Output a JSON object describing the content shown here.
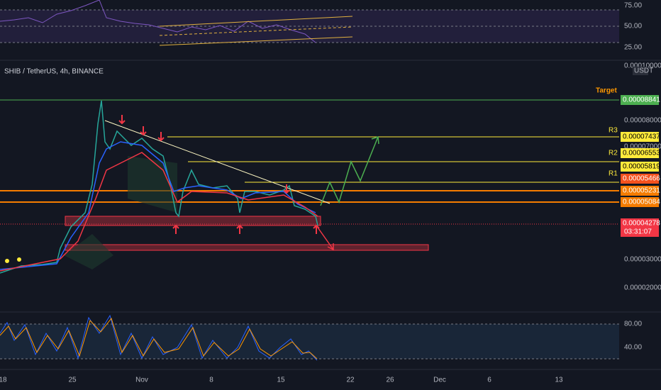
{
  "header": {
    "symbol": "SHIB / TetherUS, 4h, BINANCE",
    "currency": "USDT"
  },
  "rsi_axis": [
    "75.00",
    "50.00",
    "25.00"
  ],
  "price_axis": {
    "top": "0.00010000",
    "target_label": "Target",
    "target": "0.00008841",
    "p8": "0.00008000",
    "r3_label": "R3",
    "r3": "0.00007437",
    "p7": "0.00007000",
    "r2_label": "R2",
    "r2": "0.00006553",
    "r2b": "0.00005819",
    "r1_label": "R1",
    "r1": "0.00005466",
    "s1": "0.00005231",
    "s2": "0.00005084",
    "last": "0.00004278",
    "countdown": "03:31:07",
    "p3": "0.00003000",
    "p2": "0.00002000"
  },
  "stoch_axis": [
    "80.00",
    "40.00"
  ],
  "time_axis": [
    "18",
    "25",
    "Nov",
    "8",
    "15",
    "22",
    "26",
    "Dec",
    "6",
    "13"
  ]
}
